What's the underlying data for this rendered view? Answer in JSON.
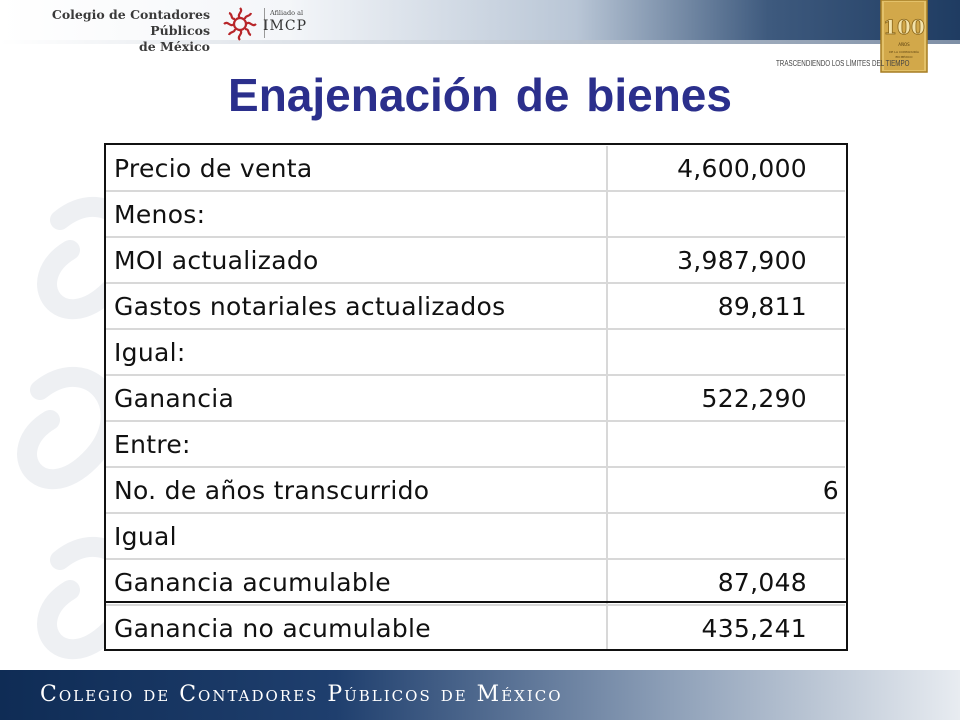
{
  "header": {
    "org_line1": "Colegio de Contadores Públicos",
    "org_line2": "de México",
    "imcp_small": "Afiliado al",
    "imcp": "IMCP",
    "tagline": "TRASCENDIENDO LOS LÍMITES DEL TIEMPO",
    "badge_number": "100",
    "badge_text": "AÑOS DE LA CONTADURÍA EN MÉXICO"
  },
  "title": "Enajenación de bienes",
  "table": {
    "rows": [
      {
        "label": "Precio de venta",
        "value": "4,600,000"
      },
      {
        "label": "Menos:",
        "value": ""
      },
      {
        "label": "MOI actualizado",
        "value": "3,987,900"
      },
      {
        "label": "Gastos notariales actualizados",
        "value": "89,811"
      },
      {
        "label": "Igual:",
        "value": ""
      },
      {
        "label": "Ganancia",
        "value": "522,290"
      },
      {
        "label": "Entre:",
        "value": ""
      },
      {
        "label": "No. de años transcurrido",
        "value": "6"
      },
      {
        "label": "Igual",
        "value": ""
      },
      {
        "label": "Ganancia acumulable",
        "value": "87,048"
      },
      {
        "label": "Ganancia no acumulable",
        "value": "435,241"
      }
    ]
  },
  "footer": {
    "text": "Colegio de Contadores Públicos de México"
  },
  "colors": {
    "title": "#2b2f8c",
    "footer_dark": "#0f2c55",
    "banner_dark": "#1f3c62",
    "gold": "#c99a2e"
  }
}
